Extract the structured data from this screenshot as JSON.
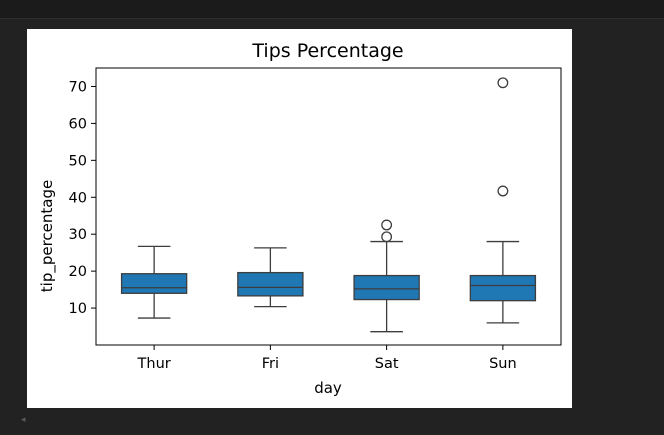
{
  "chart_data": {
    "type": "box",
    "title": "Tips Percentage",
    "xlabel": "day",
    "ylabel": "tip_percentage",
    "categories": [
      "Thur",
      "Fri",
      "Sat",
      "Sun"
    ],
    "ylim": [
      0,
      75
    ],
    "yticks": [
      10,
      20,
      30,
      40,
      50,
      60,
      70
    ],
    "grid": false,
    "box_color": "#1f77b4",
    "boxes": [
      {
        "category": "Thur",
        "whisker_low": 7.3,
        "q1": 14.0,
        "median": 15.5,
        "q3": 19.3,
        "whisker_high": 26.7,
        "outliers": []
      },
      {
        "category": "Fri",
        "whisker_low": 10.4,
        "q1": 13.3,
        "median": 15.6,
        "q3": 19.6,
        "whisker_high": 26.3,
        "outliers": []
      },
      {
        "category": "Sat",
        "whisker_low": 3.6,
        "q1": 12.3,
        "median": 15.2,
        "q3": 18.8,
        "whisker_high": 28.0,
        "outliers": [
          29.3,
          32.5
        ]
      },
      {
        "category": "Sun",
        "whisker_low": 6.0,
        "q1": 12.0,
        "median": 16.1,
        "q3": 18.8,
        "whisker_high": 28.0,
        "outliers": [
          41.7,
          71.0
        ]
      }
    ]
  }
}
